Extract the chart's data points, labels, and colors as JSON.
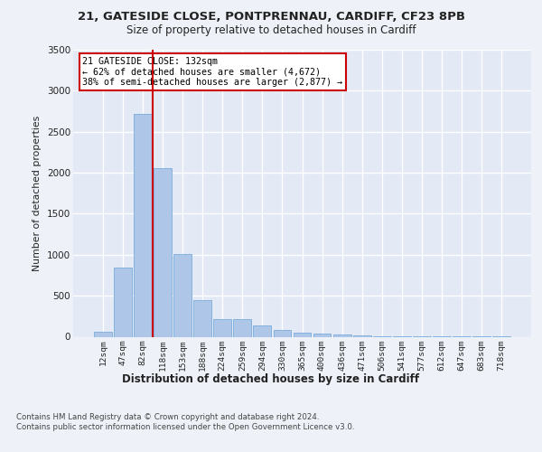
{
  "title_line1": "21, GATESIDE CLOSE, PONTPRENNAU, CARDIFF, CF23 8PB",
  "title_line2": "Size of property relative to detached houses in Cardiff",
  "xlabel": "Distribution of detached houses by size in Cardiff",
  "ylabel": "Number of detached properties",
  "categories": [
    "12sqm",
    "47sqm",
    "82sqm",
    "118sqm",
    "153sqm",
    "188sqm",
    "224sqm",
    "259sqm",
    "294sqm",
    "330sqm",
    "365sqm",
    "400sqm",
    "436sqm",
    "471sqm",
    "506sqm",
    "541sqm",
    "577sqm",
    "612sqm",
    "647sqm",
    "683sqm",
    "718sqm"
  ],
  "values": [
    60,
    840,
    2720,
    2060,
    1010,
    450,
    215,
    210,
    140,
    80,
    55,
    35,
    25,
    20,
    10,
    5,
    3,
    2,
    2,
    2,
    10
  ],
  "bar_color": "#aec6e8",
  "bar_edge_color": "#7aaddb",
  "vline_x": 2.5,
  "vline_color": "#cc0000",
  "annotation_text": "21 GATESIDE CLOSE: 132sqm\n← 62% of detached houses are smaller (4,672)\n38% of semi-detached houses are larger (2,877) →",
  "annotation_box_color": "#ffffff",
  "annotation_box_edge_color": "#cc0000",
  "ylim": [
    0,
    3500
  ],
  "yticks": [
    0,
    500,
    1000,
    1500,
    2000,
    2500,
    3000,
    3500
  ],
  "footnote": "Contains HM Land Registry data © Crown copyright and database right 2024.\nContains public sector information licensed under the Open Government Licence v3.0.",
  "background_color": "#eef2f8",
  "plot_bg_color": "#e4eaf5"
}
